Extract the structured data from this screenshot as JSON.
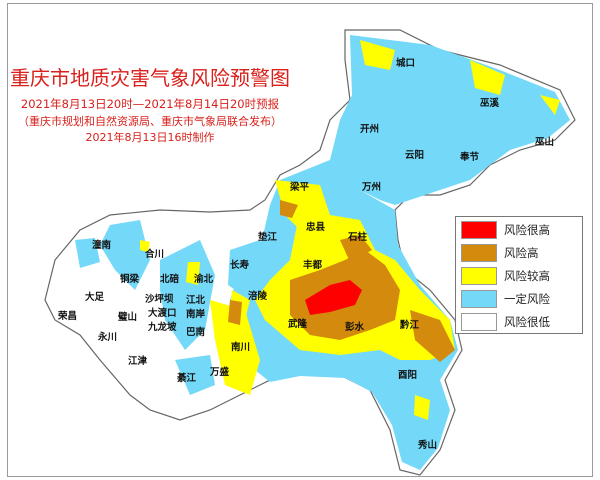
{
  "header": {
    "title": "重庆市地质灾害气象风险预警图",
    "period": "2021年8月13日20时—2021年8月14日20时预报",
    "issuer": "（重庆市规划和自然资源局、重庆市气象局联合发布）",
    "made": "2021年8月13日16时制作"
  },
  "legend": [
    {
      "label": "风险很高",
      "color": "#ff0000"
    },
    {
      "label": "风险高",
      "color": "#d48a0c"
    },
    {
      "label": "风险较高",
      "color": "#ffff00"
    },
    {
      "label": "一定风险",
      "color": "#74d8f8"
    },
    {
      "label": "风险很低",
      "color": "#ffffff"
    }
  ],
  "districts": {
    "chengkou": "城口",
    "wuxi": "巫溪",
    "kaizhou": "开州",
    "wushan": "巫山",
    "yunyang": "云阳",
    "fengjie": "奉节",
    "liangping": "梁平",
    "wanzhou": "万州",
    "zhongxian": "忠县",
    "dianjiang": "垫江",
    "shizhu": "石柱",
    "fengdu": "丰都",
    "changshou": "长寿",
    "fuling": "涪陵",
    "wulong": "武隆",
    "pengshui": "彭水",
    "qianjiang": "黔江",
    "youyang": "酉阳",
    "xiushan": "秀山",
    "nanchuan": "南川",
    "wansheng": "万盛",
    "qijiang": "綦江",
    "jiangjin": "江津",
    "banan": "巴南",
    "nanan": "南岸",
    "jiangbei": "江北",
    "yubei": "渝北",
    "beibei": "北碚",
    "hechuan": "合川",
    "tongnan": "潼南",
    "tongliang": "铜梁",
    "dazu": "大足",
    "rongchang": "荣昌",
    "yongchuan": "永川",
    "bishan": "璧山",
    "shapingba": "沙坪坝",
    "dadukou": "大渡口",
    "jiulongpo": "九龙坡"
  }
}
